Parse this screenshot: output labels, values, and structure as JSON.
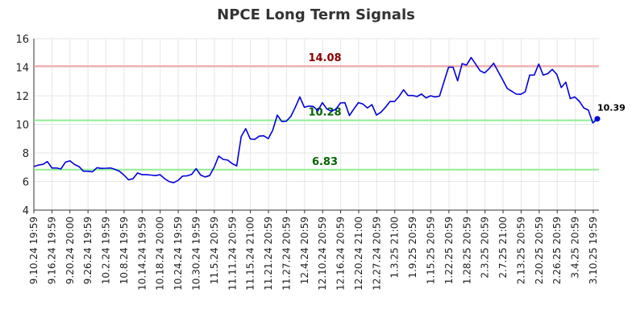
{
  "chart_data": {
    "type": "line",
    "title": "NPCE Long Term Signals",
    "xlabel": "",
    "ylabel": "",
    "ylim": [
      4,
      16
    ],
    "y_ticks": [
      4,
      6,
      8,
      10,
      12,
      14,
      16
    ],
    "grid": true,
    "x_tick_labels": [
      "9.10.24 19:59",
      "9.16.24 19:59",
      "9.20.24 20:00",
      "9.26.24 19:59",
      "10.2.24 19:59",
      "10.8.24 19:59",
      "10.14.24 19:59",
      "10.18.24 20:00",
      "10.24.24 19:59",
      "10.30.24 19:59",
      "11.5.24 20:59",
      "11.11.24 20:59",
      "11.15.24 21:00",
      "11.21.24 20:59",
      "11.27.24 20:59",
      "12.4.24 20:59",
      "12.10.24 20:59",
      "12.16.24 20:59",
      "12.20.24 21:00",
      "12.27.24 20:59",
      "1.3.25 21:00",
      "1.9.25 20:59",
      "1.15.25 20:59",
      "1.22.25 20:59",
      "1.28.25 20:59",
      "2.3.25 20:59",
      "2.7.25 21:00",
      "2.13.25 20:59",
      "2.20.25 20:59",
      "2.26.25 20:59",
      "3.4.25 20:59",
      "3.10.25 19:59"
    ],
    "series": [
      {
        "color": "#0000dd",
        "values": [
          7.05,
          7.15,
          7.2,
          7.4,
          6.95,
          6.95,
          6.88,
          7.35,
          7.45,
          7.2,
          7.05,
          6.72,
          6.72,
          6.68,
          6.97,
          6.92,
          6.93,
          6.95,
          6.85,
          6.72,
          6.45,
          6.12,
          6.2,
          6.6,
          6.48,
          6.48,
          6.45,
          6.42,
          6.48,
          6.2,
          6.0,
          5.92,
          6.08,
          6.38,
          6.4,
          6.5,
          6.9,
          6.45,
          6.32,
          6.42,
          7.0,
          7.78,
          7.55,
          7.5,
          7.25,
          7.1,
          9.15,
          9.7,
          8.98,
          8.95,
          9.18,
          9.2,
          9.0,
          9.6,
          10.65,
          10.2,
          10.22,
          10.55,
          11.2,
          11.92,
          11.2,
          11.28,
          11.25,
          10.95,
          11.52,
          11.08,
          10.92,
          11.05,
          11.5,
          11.52,
          10.62,
          11.08,
          11.52,
          11.42,
          11.15,
          11.38,
          10.65,
          10.85,
          11.2,
          11.6,
          11.6,
          11.95,
          12.42,
          12.02,
          12.02,
          11.95,
          12.12,
          11.85,
          12.0,
          11.92,
          11.98,
          13.0,
          14.0,
          14.0,
          13.05,
          14.25,
          14.15,
          14.68,
          14.22,
          13.75,
          13.6,
          13.9,
          14.28,
          13.7,
          13.12,
          12.52,
          12.32,
          12.12,
          12.1,
          12.28,
          13.45,
          13.45,
          14.22,
          13.45,
          13.55,
          13.85,
          13.5,
          12.58,
          12.95,
          11.8,
          11.92,
          11.62,
          11.15,
          11.0,
          10.1,
          10.39
        ]
      }
    ],
    "reference_lines": [
      {
        "value": 14.08,
        "label": "14.08",
        "color": "#f4a9a9",
        "label_color": "#8b0000"
      },
      {
        "value": 10.28,
        "label": "10.28",
        "color": "#90ee90",
        "label_color": "#006400"
      },
      {
        "value": 6.83,
        "label": "6.83",
        "color": "#90ee90",
        "label_color": "#006400"
      }
    ],
    "last_value": {
      "value": 10.39,
      "label": "10.39"
    }
  }
}
